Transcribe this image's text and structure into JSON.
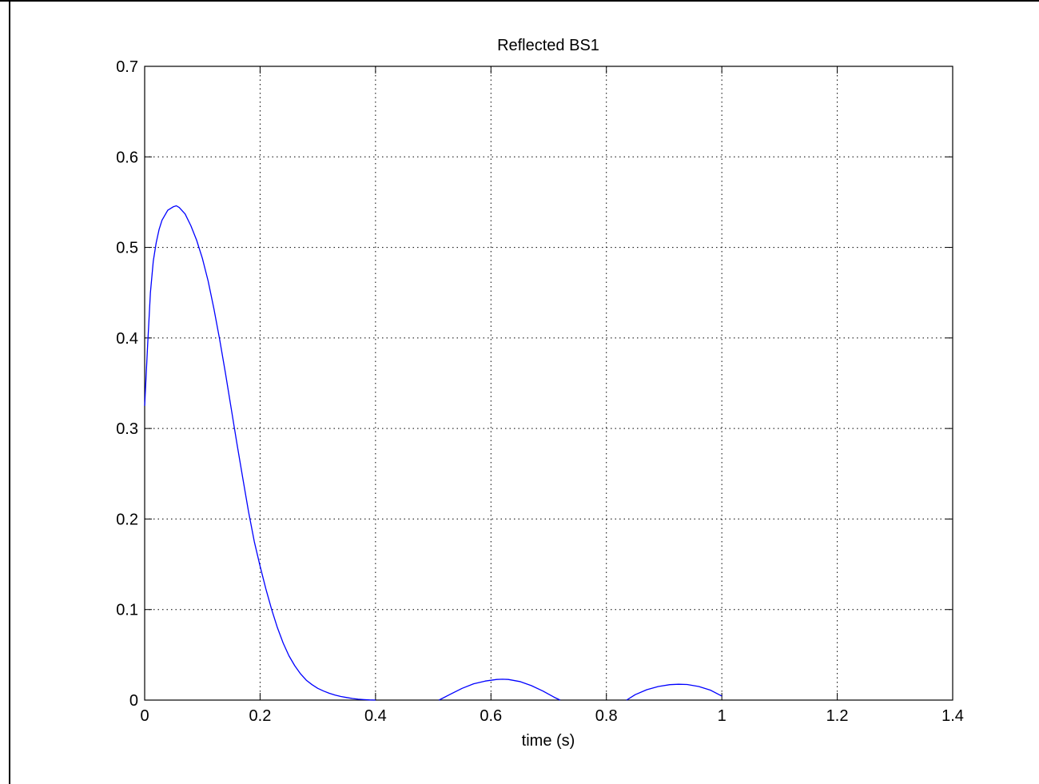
{
  "chart_data": {
    "type": "line",
    "title": "Reflected BS1",
    "xlabel": "time (s)",
    "ylabel": "",
    "xlim": [
      0,
      1.4
    ],
    "ylim": [
      0,
      0.7
    ],
    "grid": true,
    "xticks": [
      0,
      0.2,
      0.4,
      0.6,
      0.8,
      1,
      1.2,
      1.4
    ],
    "xtick_labels": [
      "0",
      "0.2",
      "0.4",
      "0.6",
      "0.8",
      "1",
      "1.2",
      "1.4"
    ],
    "yticks": [
      0,
      0.1,
      0.2,
      0.3,
      0.4,
      0.5,
      0.6,
      0.7
    ],
    "ytick_labels": [
      "0",
      "0.1",
      "0.2",
      "0.3",
      "0.4",
      "0.5",
      "0.6",
      "0.7"
    ],
    "series": [
      {
        "color": "#0000ff",
        "segments": [
          {
            "x": [
              0,
              0.005,
              0.01,
              0.015,
              0.02,
              0.025,
              0.03,
              0.04,
              0.05,
              0.055,
              0.06,
              0.07,
              0.08,
              0.09,
              0.1,
              0.11,
              0.12,
              0.13,
              0.14,
              0.15,
              0.16,
              0.17,
              0.18,
              0.19,
              0.2,
              0.21,
              0.22,
              0.23,
              0.24,
              0.25,
              0.26,
              0.27,
              0.28,
              0.29,
              0.3,
              0.31,
              0.32,
              0.33,
              0.34,
              0.35,
              0.36,
              0.37,
              0.38,
              0.39,
              0.4
            ],
            "y": [
              0.325,
              0.39,
              0.45,
              0.485,
              0.505,
              0.52,
              0.53,
              0.541,
              0.545,
              0.546,
              0.544,
              0.537,
              0.524,
              0.508,
              0.488,
              0.463,
              0.432,
              0.398,
              0.361,
              0.322,
              0.283,
              0.245,
              0.208,
              0.175,
              0.148,
              0.123,
              0.1,
              0.08,
              0.063,
              0.049,
              0.038,
              0.029,
              0.022,
              0.017,
              0.013,
              0.01,
              0.0075,
              0.0055,
              0.004,
              0.0028,
              0.0018,
              0.001,
              0.0005,
              0.0002,
              0
            ]
          },
          {
            "x": [
              0.51,
              0.53,
              0.55,
              0.57,
              0.59,
              0.61,
              0.62,
              0.63,
              0.65,
              0.67,
              0.69,
              0.71,
              0.72
            ],
            "y": [
              0,
              0.0065,
              0.013,
              0.018,
              0.021,
              0.0228,
              0.023,
              0.0228,
              0.0205,
              0.016,
              0.01,
              0.003,
              0
            ]
          },
          {
            "x": [
              0.835,
              0.85,
              0.87,
              0.89,
              0.91,
              0.925,
              0.94,
              0.96,
              0.98,
              1.0
            ],
            "y": [
              0,
              0.006,
              0.0115,
              0.015,
              0.017,
              0.0175,
              0.0172,
              0.015,
              0.011,
              0.0045
            ]
          }
        ]
      }
    ]
  }
}
